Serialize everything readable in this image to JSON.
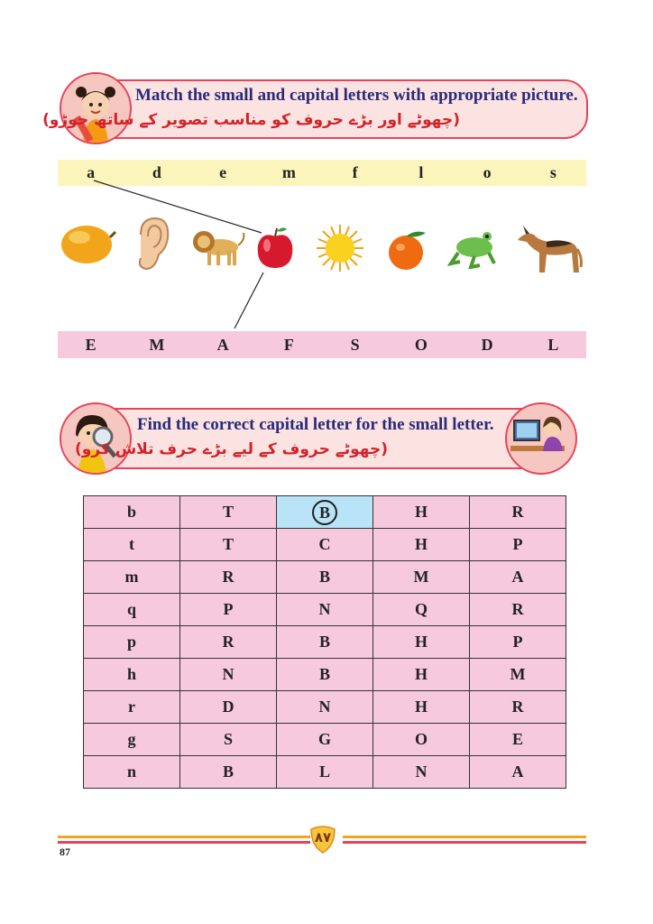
{
  "activity1": {
    "title": "Match the small and capital letters with appropriate picture.",
    "urdu": "(چھوٹے اور بڑے حروف کو مناسب تصویر کے ساتھ جوڑو)",
    "small_letters": [
      "a",
      "d",
      "e",
      "m",
      "f",
      "l",
      "o",
      "s"
    ],
    "pictures": [
      "mango",
      "ear",
      "lion",
      "apple",
      "sun",
      "orange",
      "frog",
      "dog"
    ],
    "capital_letters": [
      "E",
      "M",
      "A",
      "F",
      "S",
      "O",
      "D",
      "L"
    ],
    "colors": {
      "small_strip": "#fbf4bb",
      "capital_strip": "#f7c9dd"
    }
  },
  "activity2": {
    "title": "Find the correct capital letter for the small letter.",
    "urdu": "(چھوٹے حروف کے لیے بڑے حرف تلاش کرو)",
    "rows": [
      [
        "b",
        "T",
        "B",
        "H",
        "R"
      ],
      [
        "t",
        "T",
        "C",
        "H",
        "P"
      ],
      [
        "m",
        "R",
        "B",
        "M",
        "A"
      ],
      [
        "q",
        "P",
        "N",
        "Q",
        "R"
      ],
      [
        "p",
        "R",
        "B",
        "H",
        "P"
      ],
      [
        "h",
        "N",
        "B",
        "H",
        "M"
      ],
      [
        "r",
        "D",
        "N",
        "H",
        "R"
      ],
      [
        "g",
        "S",
        "G",
        "O",
        "E"
      ],
      [
        "n",
        "B",
        "L",
        "N",
        "A"
      ]
    ],
    "highlighted_cell": "B"
  },
  "footer": {
    "page_number": "87",
    "urdu_page_number": "۸۷"
  }
}
